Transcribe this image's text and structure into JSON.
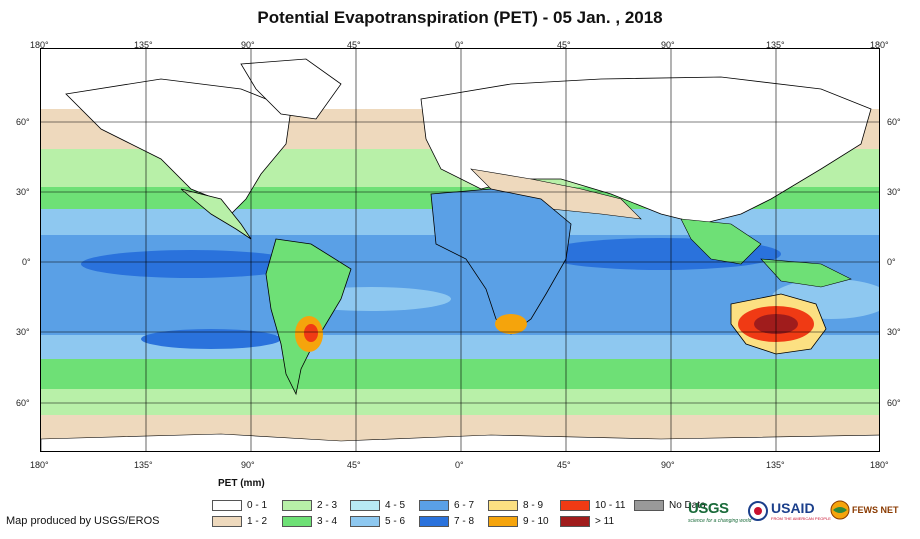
{
  "title": "Potential Evapotranspiration (PET) - 05 Jan. , 2018",
  "axes": {
    "longitude_ticks": [
      "180°",
      "135°",
      "90°",
      "45°",
      "0°",
      "45°",
      "90°",
      "135°",
      "180°"
    ],
    "latitude_ticks": [
      "60°",
      "30°",
      "0°",
      "30°",
      "60°"
    ]
  },
  "legend": {
    "title": "PET (mm)",
    "items": [
      {
        "label": "0 - 1",
        "color": "#ffffff"
      },
      {
        "label": "1 - 2",
        "color": "#eed9bd"
      },
      {
        "label": "2 - 3",
        "color": "#b8f0a8"
      },
      {
        "label": "3 - 4",
        "color": "#6ee076"
      },
      {
        "label": "4 - 5",
        "color": "#b8eaf4"
      },
      {
        "label": "5 - 6",
        "color": "#8ec8f0"
      },
      {
        "label": "6 - 7",
        "color": "#5aa0e6"
      },
      {
        "label": "7 - 8",
        "color": "#2a72dc"
      },
      {
        "label": "8 - 9",
        "color": "#fce082"
      },
      {
        "label": "9 - 10",
        "color": "#f5a40c"
      },
      {
        "label": "10 - 11",
        "color": "#f03a14"
      },
      {
        "label": "> 11",
        "color": "#a01c1c"
      },
      {
        "label": "No Data",
        "color": "#999999"
      }
    ]
  },
  "credit": "Map produced by USGS/EROS",
  "logos": {
    "usgs": "USGS",
    "usgs_tagline": "science for a changing world",
    "usaid": "USAID",
    "usaid_tagline": "FROM THE AMERICAN PEOPLE",
    "fewsnet": "FEWS NET"
  }
}
